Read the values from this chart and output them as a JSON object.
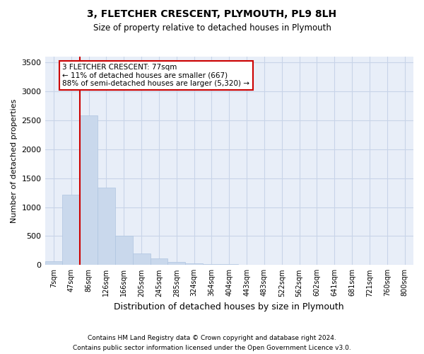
{
  "title1": "3, FLETCHER CRESCENT, PLYMOUTH, PL9 8LH",
  "title2": "Size of property relative to detached houses in Plymouth",
  "xlabel": "Distribution of detached houses by size in Plymouth",
  "ylabel": "Number of detached properties",
  "footnote1": "Contains HM Land Registry data © Crown copyright and database right 2024.",
  "footnote2": "Contains public sector information licensed under the Open Government Licence v3.0.",
  "annotation_line1": "3 FLETCHER CRESCENT: 77sqm",
  "annotation_line2": "← 11% of detached houses are smaller (667)",
  "annotation_line3": "88% of semi-detached houses are larger (5,320) →",
  "bar_color": "#c9d8ec",
  "bar_edge_color": "#afc5e0",
  "vline_color": "#cc0000",
  "annotation_box_edgecolor": "#cc0000",
  "grid_color": "#c8d4e8",
  "background_color": "#e8eef8",
  "categories": [
    "7sqm",
    "47sqm",
    "86sqm",
    "126sqm",
    "166sqm",
    "205sqm",
    "245sqm",
    "285sqm",
    "324sqm",
    "364sqm",
    "404sqm",
    "443sqm",
    "483sqm",
    "522sqm",
    "562sqm",
    "602sqm",
    "641sqm",
    "681sqm",
    "721sqm",
    "760sqm",
    "800sqm"
  ],
  "values": [
    60,
    1220,
    2580,
    1340,
    500,
    200,
    110,
    55,
    30,
    15,
    10,
    8,
    5,
    3,
    2,
    1,
    1,
    1,
    0,
    0,
    0
  ],
  "ylim": [
    0,
    3600
  ],
  "yticks": [
    0,
    500,
    1000,
    1500,
    2000,
    2500,
    3000,
    3500
  ],
  "vline_x": 2.0,
  "figsize": [
    6.0,
    5.0
  ],
  "dpi": 100
}
